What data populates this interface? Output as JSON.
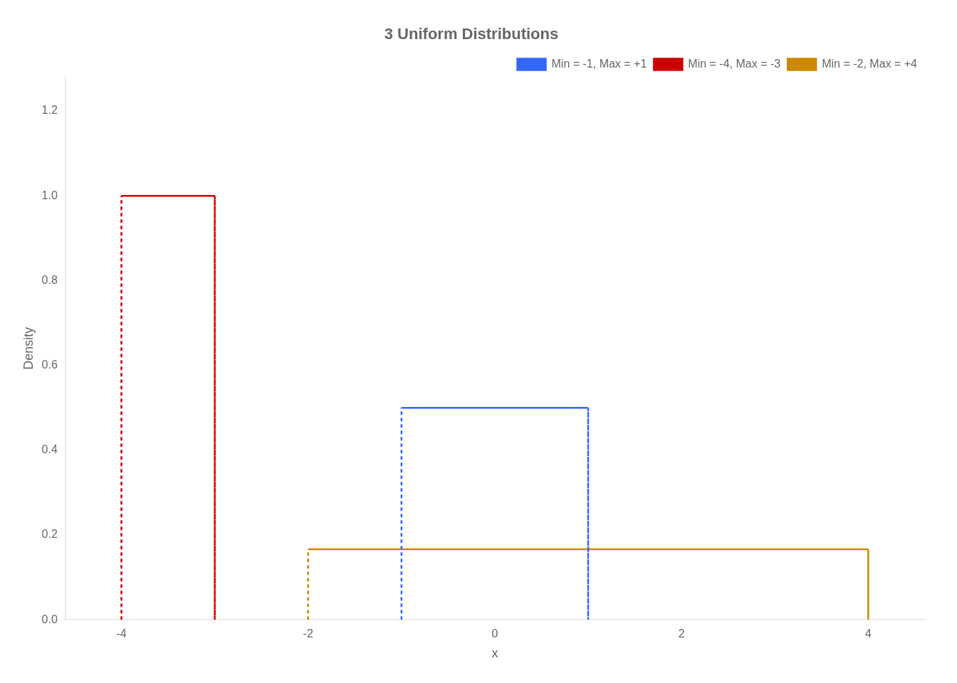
{
  "chart_data": {
    "type": "line",
    "title": "3 Uniform Distributions",
    "x_label": "x",
    "y_label": "Density",
    "series": [
      {
        "name": "Min = -1, Max = +1",
        "color": "#3366FF",
        "x": [
          -1,
          -1,
          1,
          1
        ],
        "values": [
          0,
          0.5,
          0.5,
          0
        ]
      },
      {
        "name": "Min = -4, Max = -3",
        "color": "#CC0000",
        "x": [
          -4,
          -4,
          -3,
          -3
        ],
        "values": [
          0,
          1.0,
          1.0,
          0
        ]
      },
      {
        "name": "Min = -2, Max = +4",
        "color": "#CC8800",
        "x": [
          -2,
          -2,
          4,
          4
        ],
        "values": [
          0,
          0.16666667,
          0.16666667,
          0
        ]
      }
    ],
    "xlim": [
      -4.6,
      4.6
    ],
    "ylim": [
      0,
      1.28
    ],
    "xticks": [
      -4,
      -2,
      0,
      2,
      4
    ],
    "yticks": [
      {
        "value": 0,
        "label": "0.0"
      },
      0.2,
      0.4,
      0.6,
      0.8,
      {
        "value": 1,
        "label": "1.0"
      },
      1.2
    ],
    "grid": false,
    "legend": "upper right"
  }
}
